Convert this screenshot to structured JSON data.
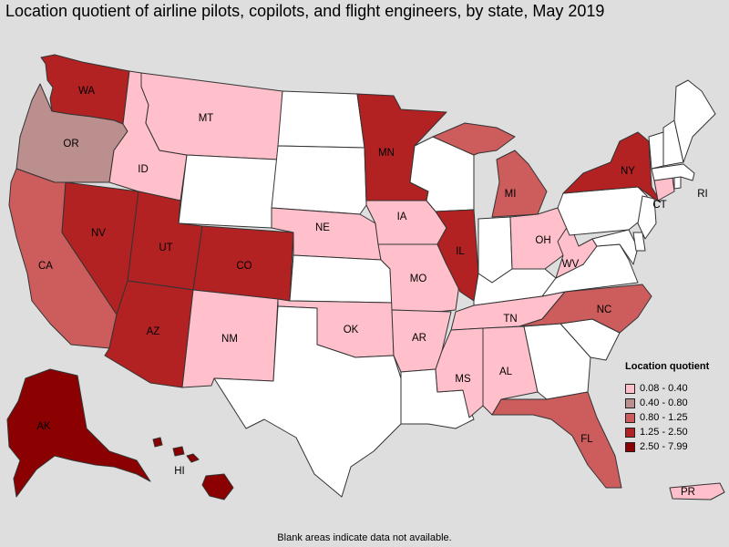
{
  "title": "Location quotient of airline pilots, copilots, and flight engineers, by state, May 2019",
  "legend": {
    "title": "Location quotient",
    "items": [
      {
        "range": "0.08 - 0.40",
        "color": "#ffc0cb"
      },
      {
        "range": "0.40 - 0.80",
        "color": "#bc8f8f"
      },
      {
        "range": "0.80 - 1.25",
        "color": "#cd5c5c"
      },
      {
        "range": "1.25 - 2.50",
        "color": "#b22222"
      },
      {
        "range": "2.50 - 7.99",
        "color": "#8b0000"
      }
    ]
  },
  "no_data_color": "#ffffff",
  "footnote": "Blank areas indicate data not available.",
  "states": [
    {
      "abbr": "WA",
      "class": 3
    },
    {
      "abbr": "OR",
      "class": 1
    },
    {
      "abbr": "CA",
      "class": 2
    },
    {
      "abbr": "NV",
      "class": 3
    },
    {
      "abbr": "ID",
      "class": 0
    },
    {
      "abbr": "MT",
      "class": 0
    },
    {
      "abbr": "WY",
      "class": null
    },
    {
      "abbr": "UT",
      "class": 3
    },
    {
      "abbr": "AZ",
      "class": 3
    },
    {
      "abbr": "CO",
      "class": 3
    },
    {
      "abbr": "NM",
      "class": 0
    },
    {
      "abbr": "ND",
      "class": null
    },
    {
      "abbr": "SD",
      "class": null
    },
    {
      "abbr": "NE",
      "class": 0
    },
    {
      "abbr": "KS",
      "class": null
    },
    {
      "abbr": "OK",
      "class": 0
    },
    {
      "abbr": "TX",
      "class": null
    },
    {
      "abbr": "MN",
      "class": 3
    },
    {
      "abbr": "IA",
      "class": 0
    },
    {
      "abbr": "MO",
      "class": 0
    },
    {
      "abbr": "AR",
      "class": 0
    },
    {
      "abbr": "LA",
      "class": null
    },
    {
      "abbr": "WI",
      "class": null
    },
    {
      "abbr": "IL",
      "class": 3
    },
    {
      "abbr": "MI",
      "class": 2
    },
    {
      "abbr": "IN",
      "class": null
    },
    {
      "abbr": "OH",
      "class": 0
    },
    {
      "abbr": "KY",
      "class": null
    },
    {
      "abbr": "TN",
      "class": 0
    },
    {
      "abbr": "MS",
      "class": 0
    },
    {
      "abbr": "AL",
      "class": 0
    },
    {
      "abbr": "GA",
      "class": null
    },
    {
      "abbr": "FL",
      "class": 2
    },
    {
      "abbr": "SC",
      "class": null
    },
    {
      "abbr": "NC",
      "class": 2
    },
    {
      "abbr": "VA",
      "class": null
    },
    {
      "abbr": "WV",
      "class": 0
    },
    {
      "abbr": "PA",
      "class": null
    },
    {
      "abbr": "NY",
      "class": 3
    },
    {
      "abbr": "NJ",
      "class": null
    },
    {
      "abbr": "DE",
      "class": null
    },
    {
      "abbr": "MD",
      "class": null
    },
    {
      "abbr": "CT",
      "class": 0
    },
    {
      "abbr": "RI",
      "class": null
    },
    {
      "abbr": "MA",
      "class": null
    },
    {
      "abbr": "VT",
      "class": null
    },
    {
      "abbr": "NH",
      "class": null
    },
    {
      "abbr": "ME",
      "class": null
    },
    {
      "abbr": "AK",
      "class": 4
    },
    {
      "abbr": "HI",
      "class": 4
    },
    {
      "abbr": "PR",
      "class": 0
    }
  ]
}
